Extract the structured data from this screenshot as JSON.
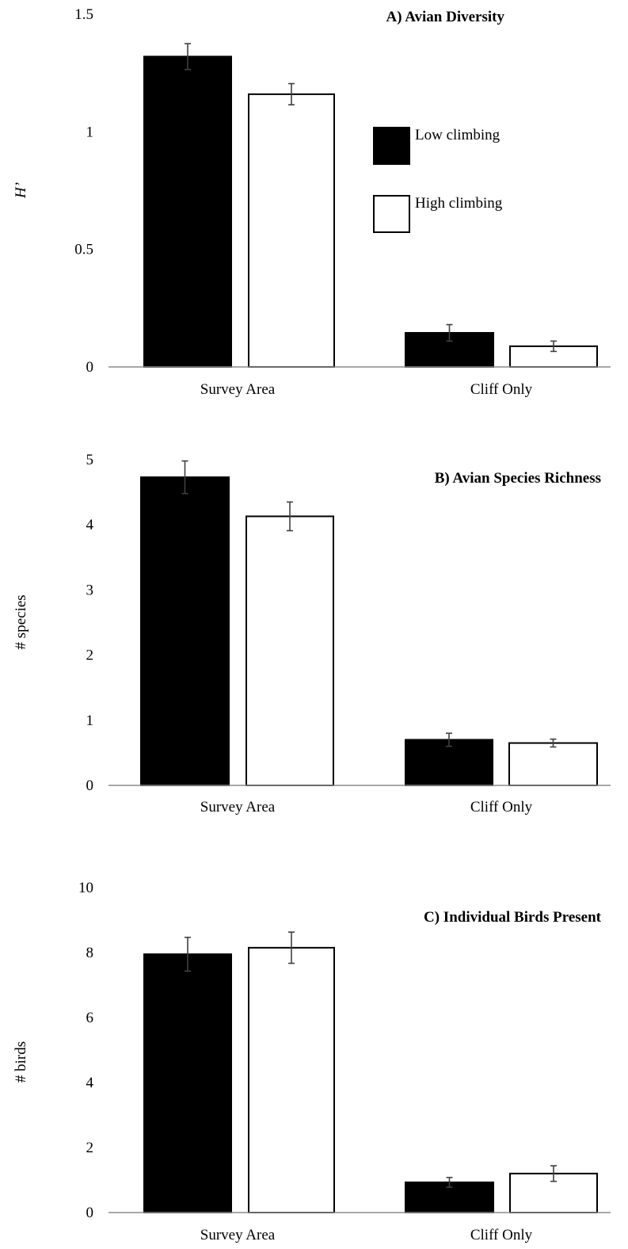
{
  "chart_data": [
    {
      "type": "bar",
      "title": "A) Avian Diversity",
      "ylabel": "H’",
      "ylabel_italic": true,
      "xlabel": "",
      "categories": [
        "Survey Area",
        "Cliff Only"
      ],
      "ylim": [
        0,
        1.5
      ],
      "yticks": [
        "0",
        "0.5",
        "1",
        "1.5"
      ],
      "grid": false,
      "legend": {
        "placement": "upper-right"
      },
      "series": [
        {
          "name": "Low climbing",
          "color": "#000000",
          "values": [
            1.32,
            0.145
          ],
          "errors": [
            0.055,
            0.035
          ]
        },
        {
          "name": "High climbing",
          "color": "#ffffff",
          "values": [
            1.16,
            0.088
          ],
          "errors": [
            0.045,
            0.022
          ]
        }
      ]
    },
    {
      "type": "bar",
      "title": "B) Avian Species Richness",
      "ylabel": "# species",
      "ylabel_italic": false,
      "xlabel": "",
      "categories": [
        "Survey Area",
        "Cliff Only"
      ],
      "ylim": [
        0,
        5
      ],
      "yticks": [
        "0",
        "1",
        "2",
        "3",
        "4",
        "5"
      ],
      "grid": false,
      "series": [
        {
          "name": "Low climbing",
          "color": "#000000",
          "values": [
            4.73,
            0.7
          ],
          "errors": [
            0.25,
            0.1
          ]
        },
        {
          "name": "High climbing",
          "color": "#ffffff",
          "values": [
            4.13,
            0.65
          ],
          "errors": [
            0.22,
            0.06
          ]
        }
      ]
    },
    {
      "type": "bar",
      "title": "C) Individual Birds Present",
      "ylabel": "# birds",
      "ylabel_italic": false,
      "xlabel": "",
      "categories": [
        "Survey Area",
        "Cliff Only"
      ],
      "ylim": [
        0,
        10
      ],
      "yticks": [
        "0",
        "2",
        "4",
        "6",
        "8",
        "10"
      ],
      "grid": false,
      "series": [
        {
          "name": "Low climbing",
          "color": "#000000",
          "values": [
            7.95,
            0.93
          ],
          "errors": [
            0.52,
            0.15
          ]
        },
        {
          "name": "High climbing",
          "color": "#ffffff",
          "values": [
            8.15,
            1.2
          ],
          "errors": [
            0.48,
            0.24
          ]
        }
      ]
    }
  ],
  "style": {
    "bar_stroke": "#000000",
    "axis_color": "#8c8c8c",
    "errorbar_color": "#404040"
  }
}
